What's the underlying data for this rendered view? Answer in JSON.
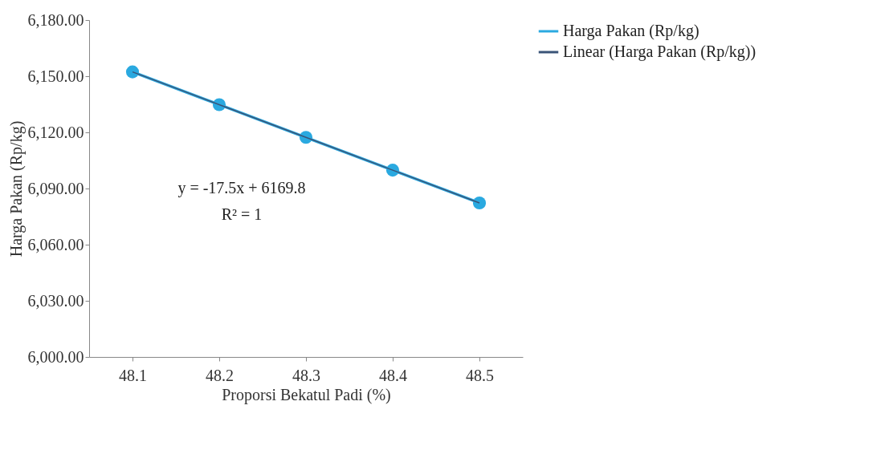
{
  "chart_data": {
    "type": "line",
    "xlabel": "Proporsi Bekatul Padi (%)",
    "ylabel": "Harga Pakan (Rp/kg)",
    "categories": [
      "48.1",
      "48.2",
      "48.3",
      "48.4",
      "48.5"
    ],
    "series": [
      {
        "name": "Harga Pakan (Rp/kg)",
        "color": "#2aa9e0",
        "values": [
          6152.3,
          6134.8,
          6117.3,
          6099.8,
          6082.3
        ],
        "marker": "circle"
      },
      {
        "name": "Linear (Harga Pakan (Rp/kg))",
        "type": "line",
        "color": "#3a5478",
        "x": [
          "48.1",
          "48.2",
          "48.3",
          "48.4",
          "48.5"
        ],
        "values": [
          6152.3,
          6134.8,
          6117.3,
          6099.8,
          6082.3
        ],
        "marker": "none"
      }
    ],
    "ylim": [
      6000,
      6180
    ],
    "yticks": [
      {
        "value": 6000,
        "label": "6,000.00"
      },
      {
        "value": 6030,
        "label": "6,030.00"
      },
      {
        "value": 6060,
        "label": "6,060.00"
      },
      {
        "value": 6090,
        "label": "6,090.00"
      },
      {
        "value": 6120,
        "label": "6,120.00"
      },
      {
        "value": 6150,
        "label": "6,150.00"
      },
      {
        "value": 6180,
        "label": "6,180.00"
      }
    ],
    "annotations": [
      "y = -17.5x + 6169.8",
      "R² = 1"
    ],
    "grid": false,
    "legend": "right"
  }
}
